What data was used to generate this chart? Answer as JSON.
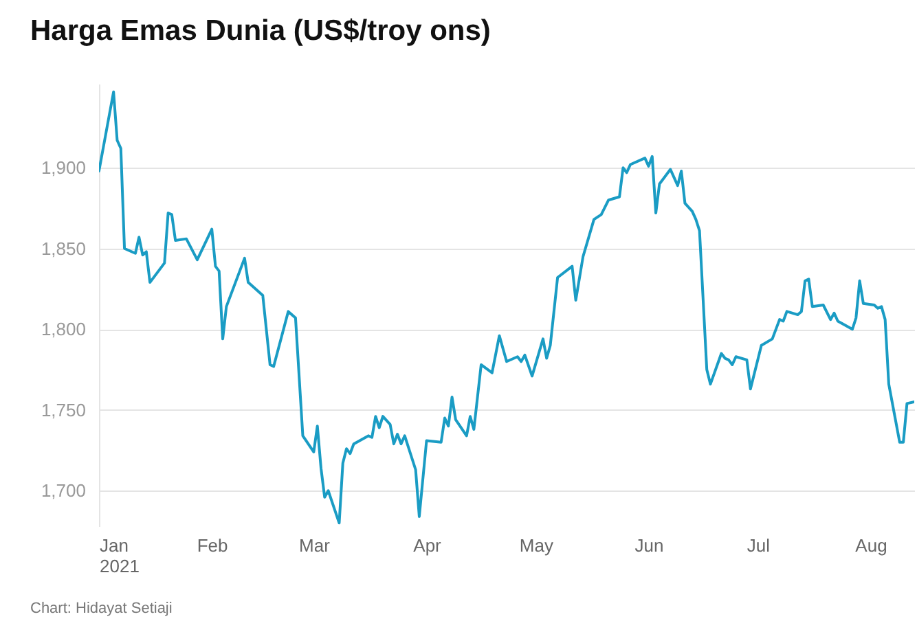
{
  "chart_data": {
    "type": "line",
    "title": "Harga Emas Dunia (US$/troy ons)",
    "annotations": [
      "Chart: Hidayat Setiaji"
    ],
    "x": [
      "2021-01-01",
      "2021-01-05",
      "2021-01-06",
      "2021-01-07",
      "2021-01-08",
      "2021-01-11",
      "2021-01-12",
      "2021-01-13",
      "2021-01-14",
      "2021-01-15",
      "2021-01-19",
      "2021-01-20",
      "2021-01-21",
      "2021-01-22",
      "2021-01-25",
      "2021-01-28",
      "2021-02-01",
      "2021-02-02",
      "2021-02-03",
      "2021-02-04",
      "2021-02-05",
      "2021-02-10",
      "2021-02-11",
      "2021-02-15",
      "2021-02-17",
      "2021-02-18",
      "2021-02-22",
      "2021-02-24",
      "2021-02-26",
      "2021-03-01",
      "2021-03-02",
      "2021-03-03",
      "2021-03-04",
      "2021-03-05",
      "2021-03-08",
      "2021-03-09",
      "2021-03-10",
      "2021-03-11",
      "2021-03-12",
      "2021-03-16",
      "2021-03-17",
      "2021-03-18",
      "2021-03-19",
      "2021-03-20",
      "2021-03-22",
      "2021-03-23",
      "2021-03-24",
      "2021-03-25",
      "2021-03-26",
      "2021-03-29",
      "2021-03-30",
      "2021-04-01",
      "2021-04-05",
      "2021-04-06",
      "2021-04-07",
      "2021-04-08",
      "2021-04-09",
      "2021-04-12",
      "2021-04-13",
      "2021-04-14",
      "2021-04-16",
      "2021-04-19",
      "2021-04-21",
      "2021-04-23",
      "2021-04-26",
      "2021-04-27",
      "2021-04-28",
      "2021-04-30",
      "2021-05-03",
      "2021-05-04",
      "2021-05-05",
      "2021-05-07",
      "2021-05-11",
      "2021-05-12",
      "2021-05-14",
      "2021-05-17",
      "2021-05-19",
      "2021-05-21",
      "2021-05-24",
      "2021-05-25",
      "2021-05-26",
      "2021-05-27",
      "2021-05-31",
      "2021-06-01",
      "2021-06-02",
      "2021-06-03",
      "2021-06-04",
      "2021-06-07",
      "2021-06-09",
      "2021-06-10",
      "2021-06-11",
      "2021-06-13",
      "2021-06-14",
      "2021-06-15",
      "2021-06-17",
      "2021-06-18",
      "2021-06-21",
      "2021-06-22",
      "2021-06-23",
      "2021-06-24",
      "2021-06-25",
      "2021-06-28",
      "2021-06-29",
      "2021-07-02",
      "2021-07-05",
      "2021-07-07",
      "2021-07-08",
      "2021-07-09",
      "2021-07-12",
      "2021-07-13",
      "2021-07-14",
      "2021-07-15",
      "2021-07-16",
      "2021-07-19",
      "2021-07-21",
      "2021-07-22",
      "2021-07-23",
      "2021-07-27",
      "2021-07-28",
      "2021-07-29",
      "2021-07-30",
      "2021-08-02",
      "2021-08-03",
      "2021-08-04",
      "2021-08-05",
      "2021-08-06",
      "2021-08-09",
      "2021-08-10",
      "2021-08-11",
      "2021-08-13"
    ],
    "series": [
      {
        "color": "#1a9cc4",
        "values": [
          1898,
          1947,
          1917,
          1912,
          1850,
          1847,
          1857,
          1846,
          1848,
          1829,
          1841,
          1872,
          1871,
          1855,
          1856,
          1843,
          1862,
          1839,
          1836,
          1794,
          1814,
          1844,
          1829,
          1821,
          1778,
          1777,
          1811,
          1807,
          1734,
          1724,
          1740,
          1714,
          1696,
          1700,
          1680,
          1717,
          1726,
          1723,
          1729,
          1734,
          1733,
          1746,
          1739,
          1746,
          1741,
          1729,
          1735,
          1729,
          1734,
          1713,
          1684,
          1731,
          1730,
          1745,
          1740,
          1758,
          1744,
          1734,
          1746,
          1738,
          1778,
          1773,
          1796,
          1780,
          1783,
          1780,
          1784,
          1771,
          1794,
          1782,
          1790,
          1832,
          1839,
          1818,
          1845,
          1868,
          1871,
          1880,
          1882,
          1900,
          1897,
          1902,
          1906,
          1901,
          1907,
          1872,
          1890,
          1899,
          1889,
          1898,
          1878,
          1873,
          1868,
          1861,
          1775,
          1766,
          1785,
          1782,
          1781,
          1778,
          1783,
          1781,
          1763,
          1790,
          1794,
          1806,
          1805,
          1811,
          1809,
          1811,
          1830,
          1831,
          1814,
          1815,
          1806,
          1810,
          1805,
          1800,
          1807,
          1830,
          1816,
          1815,
          1813,
          1814,
          1806,
          1766,
          1730,
          1730,
          1754,
          1755
        ]
      }
    ],
    "xlim": [
      "2021-01-01",
      "2021-08-13"
    ],
    "xticks": [
      {
        "value": "2021-01-01",
        "label": "Jan\n2021"
      },
      {
        "value": "2021-02-01",
        "label": "Feb"
      },
      {
        "value": "2021-03-01",
        "label": "Mar"
      },
      {
        "value": "2021-04-01",
        "label": "Apr"
      },
      {
        "value": "2021-05-01",
        "label": "May"
      },
      {
        "value": "2021-06-01",
        "label": "Jun"
      },
      {
        "value": "2021-07-01",
        "label": "Jul"
      },
      {
        "value": "2021-08-01",
        "label": "Aug"
      }
    ],
    "ylim": [
      1678,
      1952
    ],
    "yticks": [
      {
        "value": 1700,
        "label": "1,700"
      },
      {
        "value": 1750,
        "label": "1,750"
      },
      {
        "value": 1800,
        "label": "1,800"
      },
      {
        "value": 1850,
        "label": "1,850"
      },
      {
        "value": 1900,
        "label": "1,900"
      }
    ],
    "grid": "y",
    "marker": "none",
    "line_style": "solid"
  }
}
